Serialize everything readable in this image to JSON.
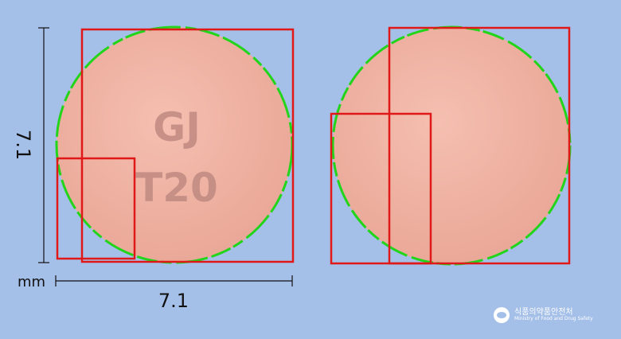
{
  "dimensions": {
    "height_label": "7.1",
    "width_label": "7.1",
    "unit_label": "mm"
  },
  "front": {
    "imprint_line1": "GJ",
    "imprint_line2": "T20"
  },
  "pill_color": "#f0b3a3",
  "outline_color": "#22d41a",
  "box_color": "#e01818",
  "logo": {
    "ko_name": "식품의약품안전처",
    "en_name": "Ministry of Food and Drug Safety"
  }
}
